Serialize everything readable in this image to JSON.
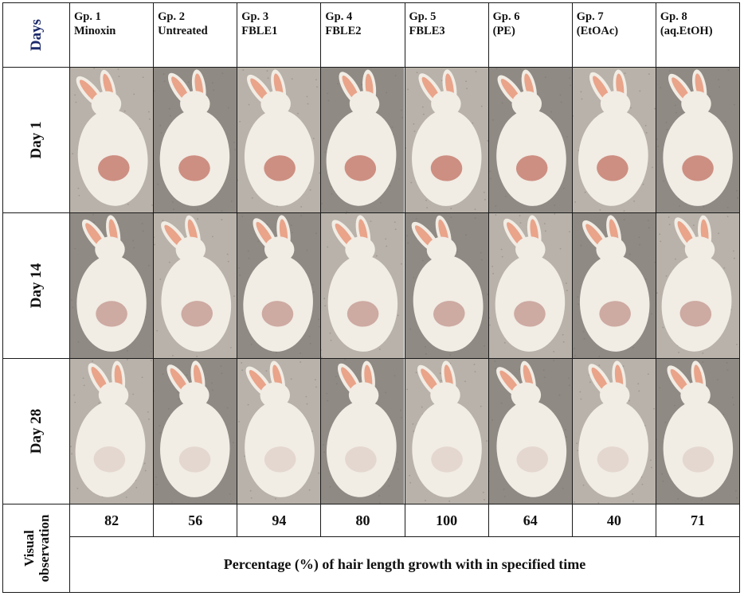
{
  "header": {
    "days_label": "Days"
  },
  "groups": [
    {
      "line1": "Gp. 1",
      "line2": "Minoxin"
    },
    {
      "line1": "Gp. 2",
      "line2": "Untreated"
    },
    {
      "line1": "Gp. 3",
      "line2": "FBLE1"
    },
    {
      "line1": "Gp. 4",
      "line2": "FBLE2"
    },
    {
      "line1": "Gp. 5",
      "line2": "FBLE3"
    },
    {
      "line1": "Gp. 6",
      "line2": "(PE)"
    },
    {
      "line1": "Gp. 7",
      "line2": "(EtOAc)"
    },
    {
      "line1": "Gp. 8",
      "line2": "(aq.EtOH)"
    }
  ],
  "rows": [
    {
      "label": "Day 1"
    },
    {
      "label": "Day 14"
    },
    {
      "label": "Day 28"
    }
  ],
  "visual_observation": {
    "label": "Visual observation",
    "values": [
      "82",
      "56",
      "94",
      "80",
      "100",
      "64",
      "40",
      "71"
    ],
    "caption": "Percentage (%) of hair length growth with in  specified time"
  },
  "photo_colors": {
    "ground_light": "#b8b2aa",
    "ground_dark": "#8f8a84",
    "fur": "#f1ece4",
    "ear": "#e9a48a",
    "patch_day1": "#c98577",
    "patch_day14": "#c9a39a",
    "patch_day28": "#d8c6c0"
  }
}
